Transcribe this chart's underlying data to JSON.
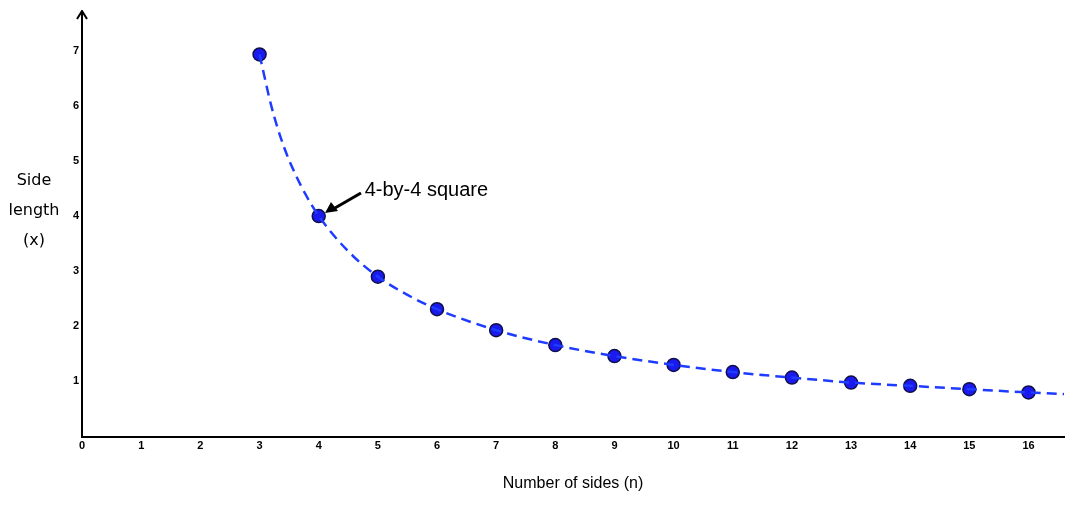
{
  "chart_data": {
    "type": "line",
    "xlabel": "Number of sides (n)",
    "ylabel": "Side length (x)",
    "xlim": [
      0,
      16.6
    ],
    "xticks": [
      0,
      1,
      2,
      3,
      4,
      5,
      6,
      7,
      8,
      9,
      10,
      11,
      12,
      13,
      14,
      15,
      16
    ],
    "ylim": [
      0,
      7.7
    ],
    "yticks": [
      1,
      2,
      3,
      4,
      5,
      6,
      7
    ],
    "grid": false,
    "legend": false,
    "annotations": [
      {
        "text": "4-by-4 square",
        "x": 4,
        "y": 4
      }
    ],
    "series": [
      {
        "type": "line",
        "color": "#1e3cff",
        "line_style": "dashed",
        "marker": "none",
        "x": [
          3,
          3.2,
          3.4,
          3.6,
          3.8,
          4,
          4.5,
          5,
          5.5,
          6,
          7,
          8,
          9,
          10,
          11,
          12,
          13,
          14,
          15,
          16,
          16.6
        ],
        "values": [
          6.93,
          5.99,
          5.29,
          4.77,
          4.35,
          4,
          3.36,
          2.9,
          2.57,
          2.31,
          1.93,
          1.66,
          1.46,
          1.3,
          1.17,
          1.07,
          0.98,
          0.92,
          0.86,
          0.8,
          0.77
        ]
      },
      {
        "type": "scatter",
        "color": "#1a1aee",
        "marker": "circle",
        "x": [
          3,
          4,
          5,
          6,
          7,
          8,
          9,
          10,
          11,
          12,
          13,
          14,
          15,
          16
        ],
        "values": [
          6.93,
          4,
          2.9,
          2.31,
          1.93,
          1.66,
          1.46,
          1.3,
          1.17,
          1.07,
          0.98,
          0.92,
          0.86,
          0.8
        ]
      }
    ]
  }
}
